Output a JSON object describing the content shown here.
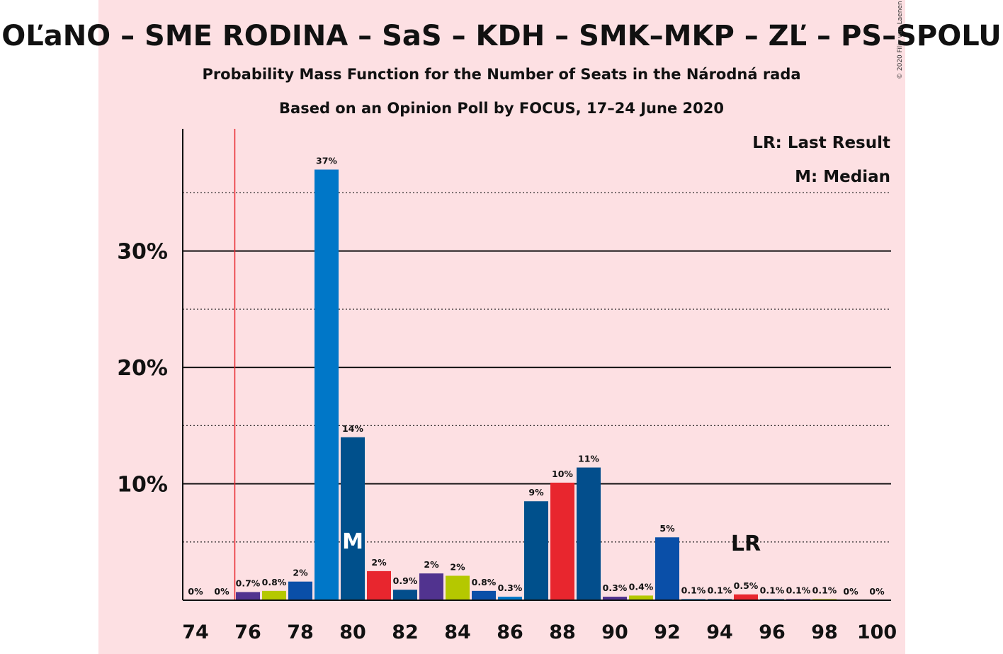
{
  "chart_data": {
    "type": "bar",
    "title": "OĽaNO – SME RODINA – SaS – KDH – SMK–MKP – ZĽ – PS–SPOLU",
    "subtitle_1": "Probability Mass Function for the Number of Seats in the Národná rada",
    "subtitle_2": "Based on an Opinion Poll by FOCUS, 17–24 June 2020",
    "copyright": "© 2020 Filip van Laenen",
    "legend_lr": "LR: Last Result",
    "legend_m": "M: Median",
    "median_marker": "M",
    "last_result_marker": "LR",
    "median_seat": 80,
    "last_result_seat": 95,
    "majority_line_seat": 75.5,
    "ylim": [
      0,
      40.5
    ],
    "y_major_ticks": [
      10,
      20,
      30
    ],
    "y_major_labels": [
      "10%",
      "20%",
      "30%"
    ],
    "y_minor_ticks": [
      5,
      15,
      25,
      35
    ],
    "x_tick_labels": [
      "74",
      "76",
      "78",
      "80",
      "82",
      "84",
      "86",
      "88",
      "90",
      "92",
      "94",
      "96",
      "98",
      "100"
    ],
    "bars": [
      {
        "seat": 74,
        "value": 0,
        "label": "0%",
        "color": "#7c3aa8"
      },
      {
        "seat": 75,
        "value": 0,
        "label": "0%",
        "color": "#b5c800"
      },
      {
        "seat": 76,
        "value": 0.7,
        "label": "0.7%",
        "color": "#51338f"
      },
      {
        "seat": 77,
        "value": 0.8,
        "label": "0.8%",
        "color": "#b5c800"
      },
      {
        "seat": 78,
        "value": 1.6,
        "label": "2%",
        "color": "#0a4fa8"
      },
      {
        "seat": 79,
        "value": 37,
        "label": "37%",
        "color": "#0077c8"
      },
      {
        "seat": 80,
        "value": 14,
        "label": "14%",
        "color": "#00508c"
      },
      {
        "seat": 81,
        "value": 2.5,
        "label": "2%",
        "color": "#e8262e"
      },
      {
        "seat": 82,
        "value": 0.9,
        "label": "0.9%",
        "color": "#034e8c"
      },
      {
        "seat": 83,
        "value": 2.3,
        "label": "2%",
        "color": "#51338f"
      },
      {
        "seat": 84,
        "value": 2.1,
        "label": "2%",
        "color": "#b5c800"
      },
      {
        "seat": 85,
        "value": 0.8,
        "label": "0.8%",
        "color": "#0a4fa8"
      },
      {
        "seat": 86,
        "value": 0.3,
        "label": "0.3%",
        "color": "#0077c8"
      },
      {
        "seat": 87,
        "value": 8.5,
        "label": "9%",
        "color": "#00508c"
      },
      {
        "seat": 88,
        "value": 10.1,
        "label": "10%",
        "color": "#e8262e"
      },
      {
        "seat": 89,
        "value": 11.4,
        "label": "11%",
        "color": "#034e8c"
      },
      {
        "seat": 90,
        "value": 0.3,
        "label": "0.3%",
        "color": "#51338f"
      },
      {
        "seat": 91,
        "value": 0.4,
        "label": "0.4%",
        "color": "#b5c800"
      },
      {
        "seat": 92,
        "value": 5.4,
        "label": "5%",
        "color": "#0a4fa8"
      },
      {
        "seat": 93,
        "value": 0.1,
        "label": "0.1%",
        "color": "#0077c8"
      },
      {
        "seat": 94,
        "value": 0.1,
        "label": "0.1%",
        "color": "#00508c"
      },
      {
        "seat": 95,
        "value": 0.5,
        "label": "0.5%",
        "color": "#e8262e"
      },
      {
        "seat": 96,
        "value": 0.1,
        "label": "0.1%",
        "color": "#034e8c"
      },
      {
        "seat": 97,
        "value": 0.1,
        "label": "0.1%",
        "color": "#51338f"
      },
      {
        "seat": 98,
        "value": 0.1,
        "label": "0.1%",
        "color": "#b5c800"
      },
      {
        "seat": 99,
        "value": 0,
        "label": "0%",
        "color": "#0a4fa8"
      },
      {
        "seat": 100,
        "value": 0,
        "label": "0%",
        "color": "#0077c8"
      }
    ],
    "colors": {
      "background_panel": "#fde0e3",
      "axis": "#111111",
      "majority_line": "#e8262e"
    }
  }
}
